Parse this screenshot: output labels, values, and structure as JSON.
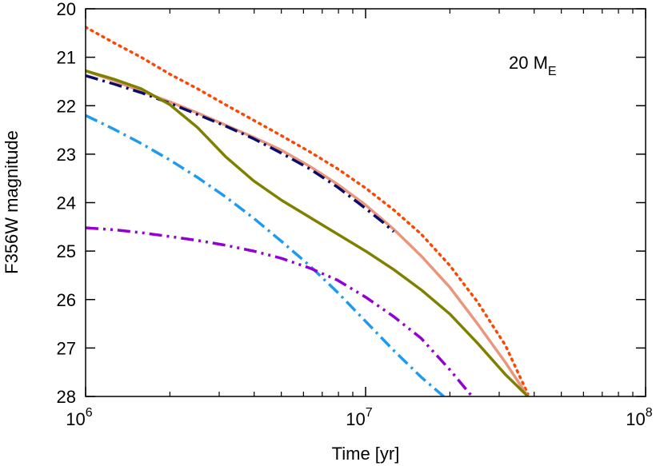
{
  "chart_data": {
    "type": "line",
    "xlabel": "Time [yr]",
    "ylabel": "F356W magnitude",
    "x_scale": "log",
    "xlim": [
      1000000,
      100000000
    ],
    "ylim": [
      28,
      20
    ],
    "y_inverted": true,
    "x_ticks": [
      {
        "value": 1000000,
        "base": "10",
        "exp": "6"
      },
      {
        "value": 10000000,
        "base": "10",
        "exp": "7"
      },
      {
        "value": 100000000,
        "base": "10",
        "exp": "8"
      }
    ],
    "y_ticks": [
      20,
      21,
      22,
      23,
      24,
      25,
      26,
      27,
      28
    ],
    "grid": false,
    "annotation": {
      "main": "20 M",
      "sub": "E"
    },
    "series": [
      {
        "color": "#ff4500",
        "style": "dotted",
        "x": [
          1000000,
          1260000,
          1580000,
          2000000,
          2510000,
          3160000,
          3980000,
          5010000,
          6310000,
          7940000,
          10000000,
          12600000,
          15800000,
          20000000,
          25100000,
          31600000,
          38000000
        ],
        "y": [
          20.38,
          20.7,
          21.0,
          21.35,
          21.65,
          21.98,
          22.3,
          22.62,
          22.95,
          23.3,
          23.7,
          24.15,
          24.65,
          25.3,
          26.05,
          26.95,
          27.95
        ]
      },
      {
        "color": "#e9967a",
        "style": "solid",
        "x": [
          1000000,
          1260000,
          1580000,
          2000000,
          2510000,
          3160000,
          3980000,
          5010000,
          6310000,
          7940000,
          10000000,
          12600000,
          15800000,
          20000000,
          25100000,
          31600000,
          38000000
        ],
        "y": [
          21.28,
          21.48,
          21.7,
          21.92,
          22.15,
          22.4,
          22.65,
          22.92,
          23.25,
          23.62,
          24.05,
          24.55,
          25.1,
          25.75,
          26.5,
          27.3,
          28.0
        ]
      },
      {
        "color": "#0b0b6e",
        "style": "dash-dot",
        "x": [
          1000000,
          1260000,
          1580000,
          2000000,
          2510000,
          3160000,
          3980000,
          5010000,
          6310000,
          7940000,
          10000000,
          11500000,
          12600000
        ],
        "y": [
          21.38,
          21.55,
          21.73,
          21.95,
          22.18,
          22.42,
          22.68,
          22.98,
          23.3,
          23.68,
          24.12,
          24.4,
          24.6
        ]
      },
      {
        "color": "#808000",
        "style": "solid",
        "x": [
          1000000,
          1260000,
          1580000,
          2000000,
          2510000,
          3160000,
          3980000,
          5010000,
          6310000,
          7940000,
          10000000,
          12600000,
          15800000,
          20000000,
          25100000,
          31600000,
          38000000
        ],
        "y": [
          21.28,
          21.45,
          21.65,
          21.98,
          22.45,
          23.05,
          23.55,
          23.95,
          24.3,
          24.65,
          25.0,
          25.38,
          25.8,
          26.3,
          26.9,
          27.55,
          28.0
        ]
      },
      {
        "color": "#1e9bf0",
        "style": "dash-dot",
        "x": [
          1000000,
          1260000,
          1580000,
          2000000,
          2510000,
          3160000,
          3980000,
          5010000,
          6310000,
          7940000,
          10000000,
          12600000,
          15800000,
          19000000
        ],
        "y": [
          22.2,
          22.48,
          22.78,
          23.12,
          23.48,
          23.88,
          24.32,
          24.8,
          25.3,
          25.85,
          26.45,
          27.05,
          27.6,
          28.0
        ]
      },
      {
        "color": "#9400d3",
        "style": "dash-dot-dot",
        "x": [
          1000000,
          1260000,
          1580000,
          2000000,
          2510000,
          3160000,
          3980000,
          5010000,
          6310000,
          7940000,
          10000000,
          12600000,
          15800000,
          20000000,
          24000000
        ],
        "y": [
          24.52,
          24.56,
          24.62,
          24.7,
          24.78,
          24.88,
          25.0,
          25.15,
          25.35,
          25.6,
          25.95,
          26.35,
          26.8,
          27.45,
          28.0
        ]
      }
    ]
  }
}
